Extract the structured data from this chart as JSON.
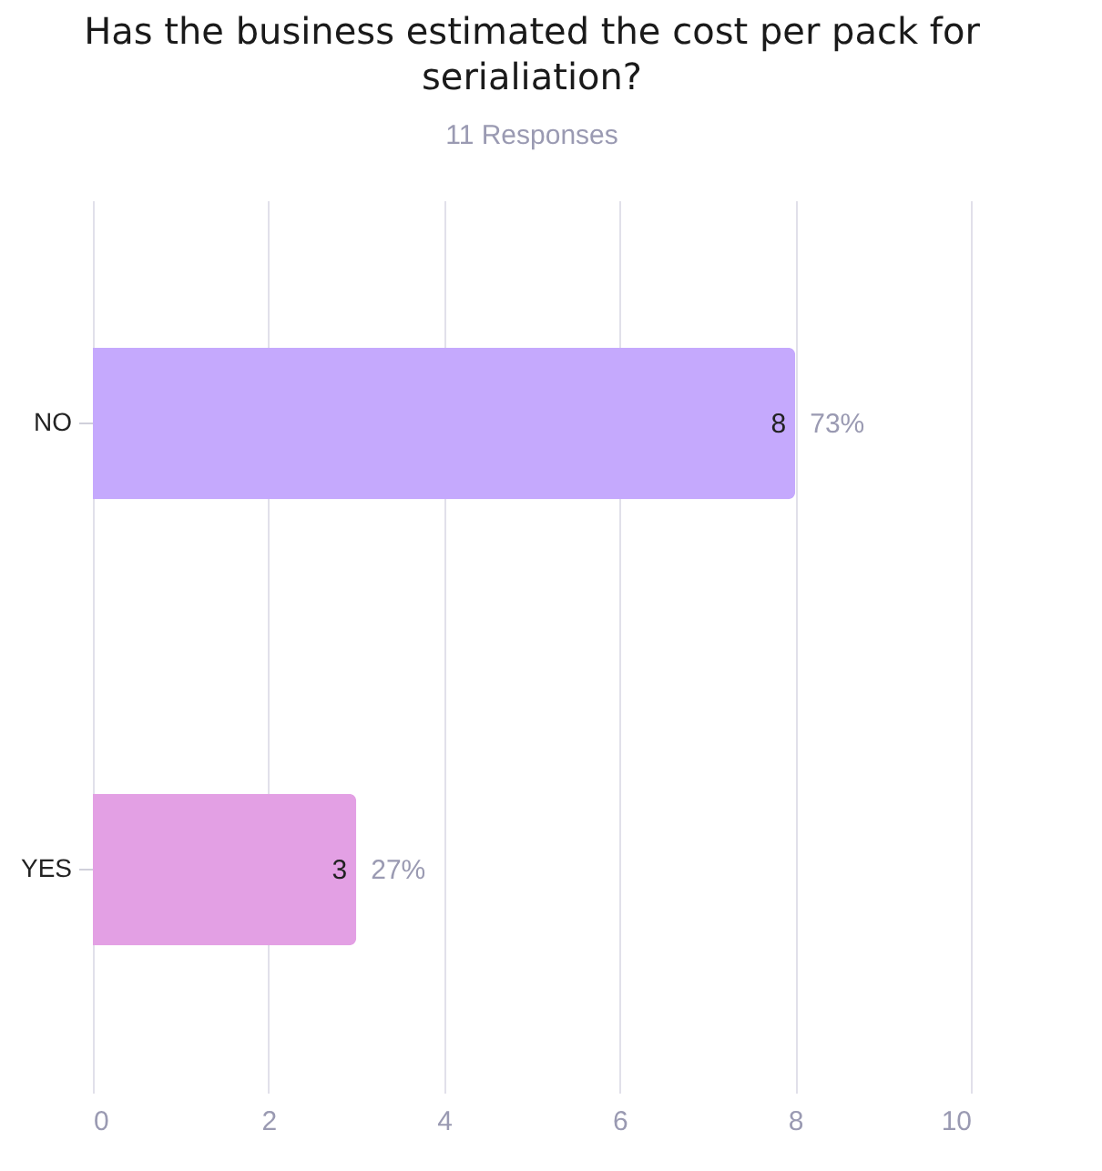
{
  "chart_data": {
    "type": "bar",
    "orientation": "horizontal",
    "title": "Has the business estimated the cost per pack for serialiation?",
    "subtitle": "11 Responses",
    "categories": [
      "NO",
      "YES"
    ],
    "values": [
      8,
      3
    ],
    "colors": [
      "#c5a9fd",
      "#e3a0e4"
    ],
    "xlim": [
      0,
      10
    ],
    "xticks": [
      0,
      2,
      4,
      6,
      8,
      10
    ],
    "grid": "x",
    "data_labels": true,
    "annotations": [
      {
        "text": "73%",
        "x": 8,
        "y": "NO"
      },
      {
        "text": "27%",
        "x": 3,
        "y": "YES"
      }
    ]
  }
}
